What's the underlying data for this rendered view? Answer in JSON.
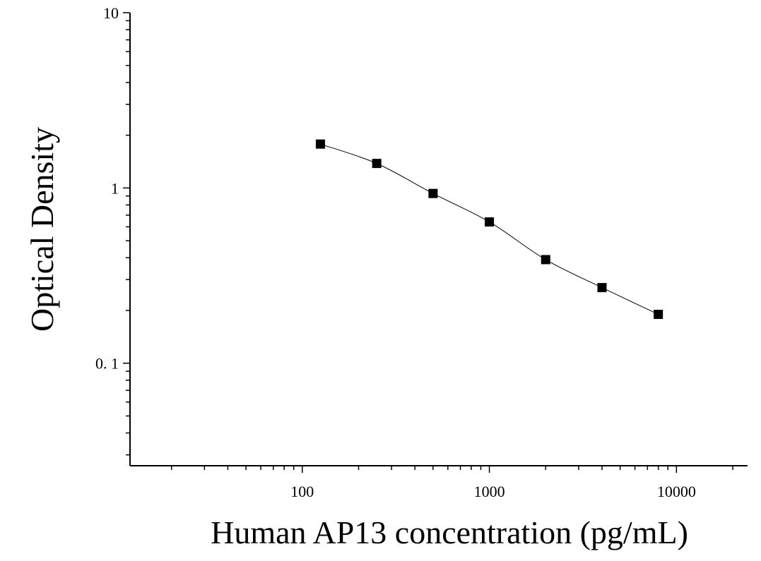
{
  "chart_data": {
    "type": "scatter",
    "title": "",
    "xlabel": "Human AP13 concentration (pg/mL)",
    "ylabel": "Optical Density",
    "x_scale": "log",
    "y_scale": "log",
    "xlim": [
      12,
      24000
    ],
    "ylim": [
      0.026,
      10
    ],
    "grid": false,
    "legend": "none",
    "x_tick_labels": [
      {
        "value": 100,
        "label": "100"
      },
      {
        "value": 1000,
        "label": "1000"
      },
      {
        "value": 10000,
        "label": "10000"
      }
    ],
    "y_tick_labels": [
      {
        "value": 0.1,
        "label": "0. 1"
      },
      {
        "value": 1,
        "label": "1"
      },
      {
        "value": 10,
        "label": "10"
      }
    ],
    "series": [
      {
        "marker": "square",
        "color": "#000000",
        "points": [
          {
            "x": 125,
            "y": 1.78
          },
          {
            "x": 250,
            "y": 1.38
          },
          {
            "x": 500,
            "y": 0.93
          },
          {
            "x": 1000,
            "y": 0.64
          },
          {
            "x": 2000,
            "y": 0.39
          },
          {
            "x": 4000,
            "y": 0.27
          },
          {
            "x": 8000,
            "y": 0.19
          }
        ],
        "fit": "smooth curve"
      }
    ]
  }
}
